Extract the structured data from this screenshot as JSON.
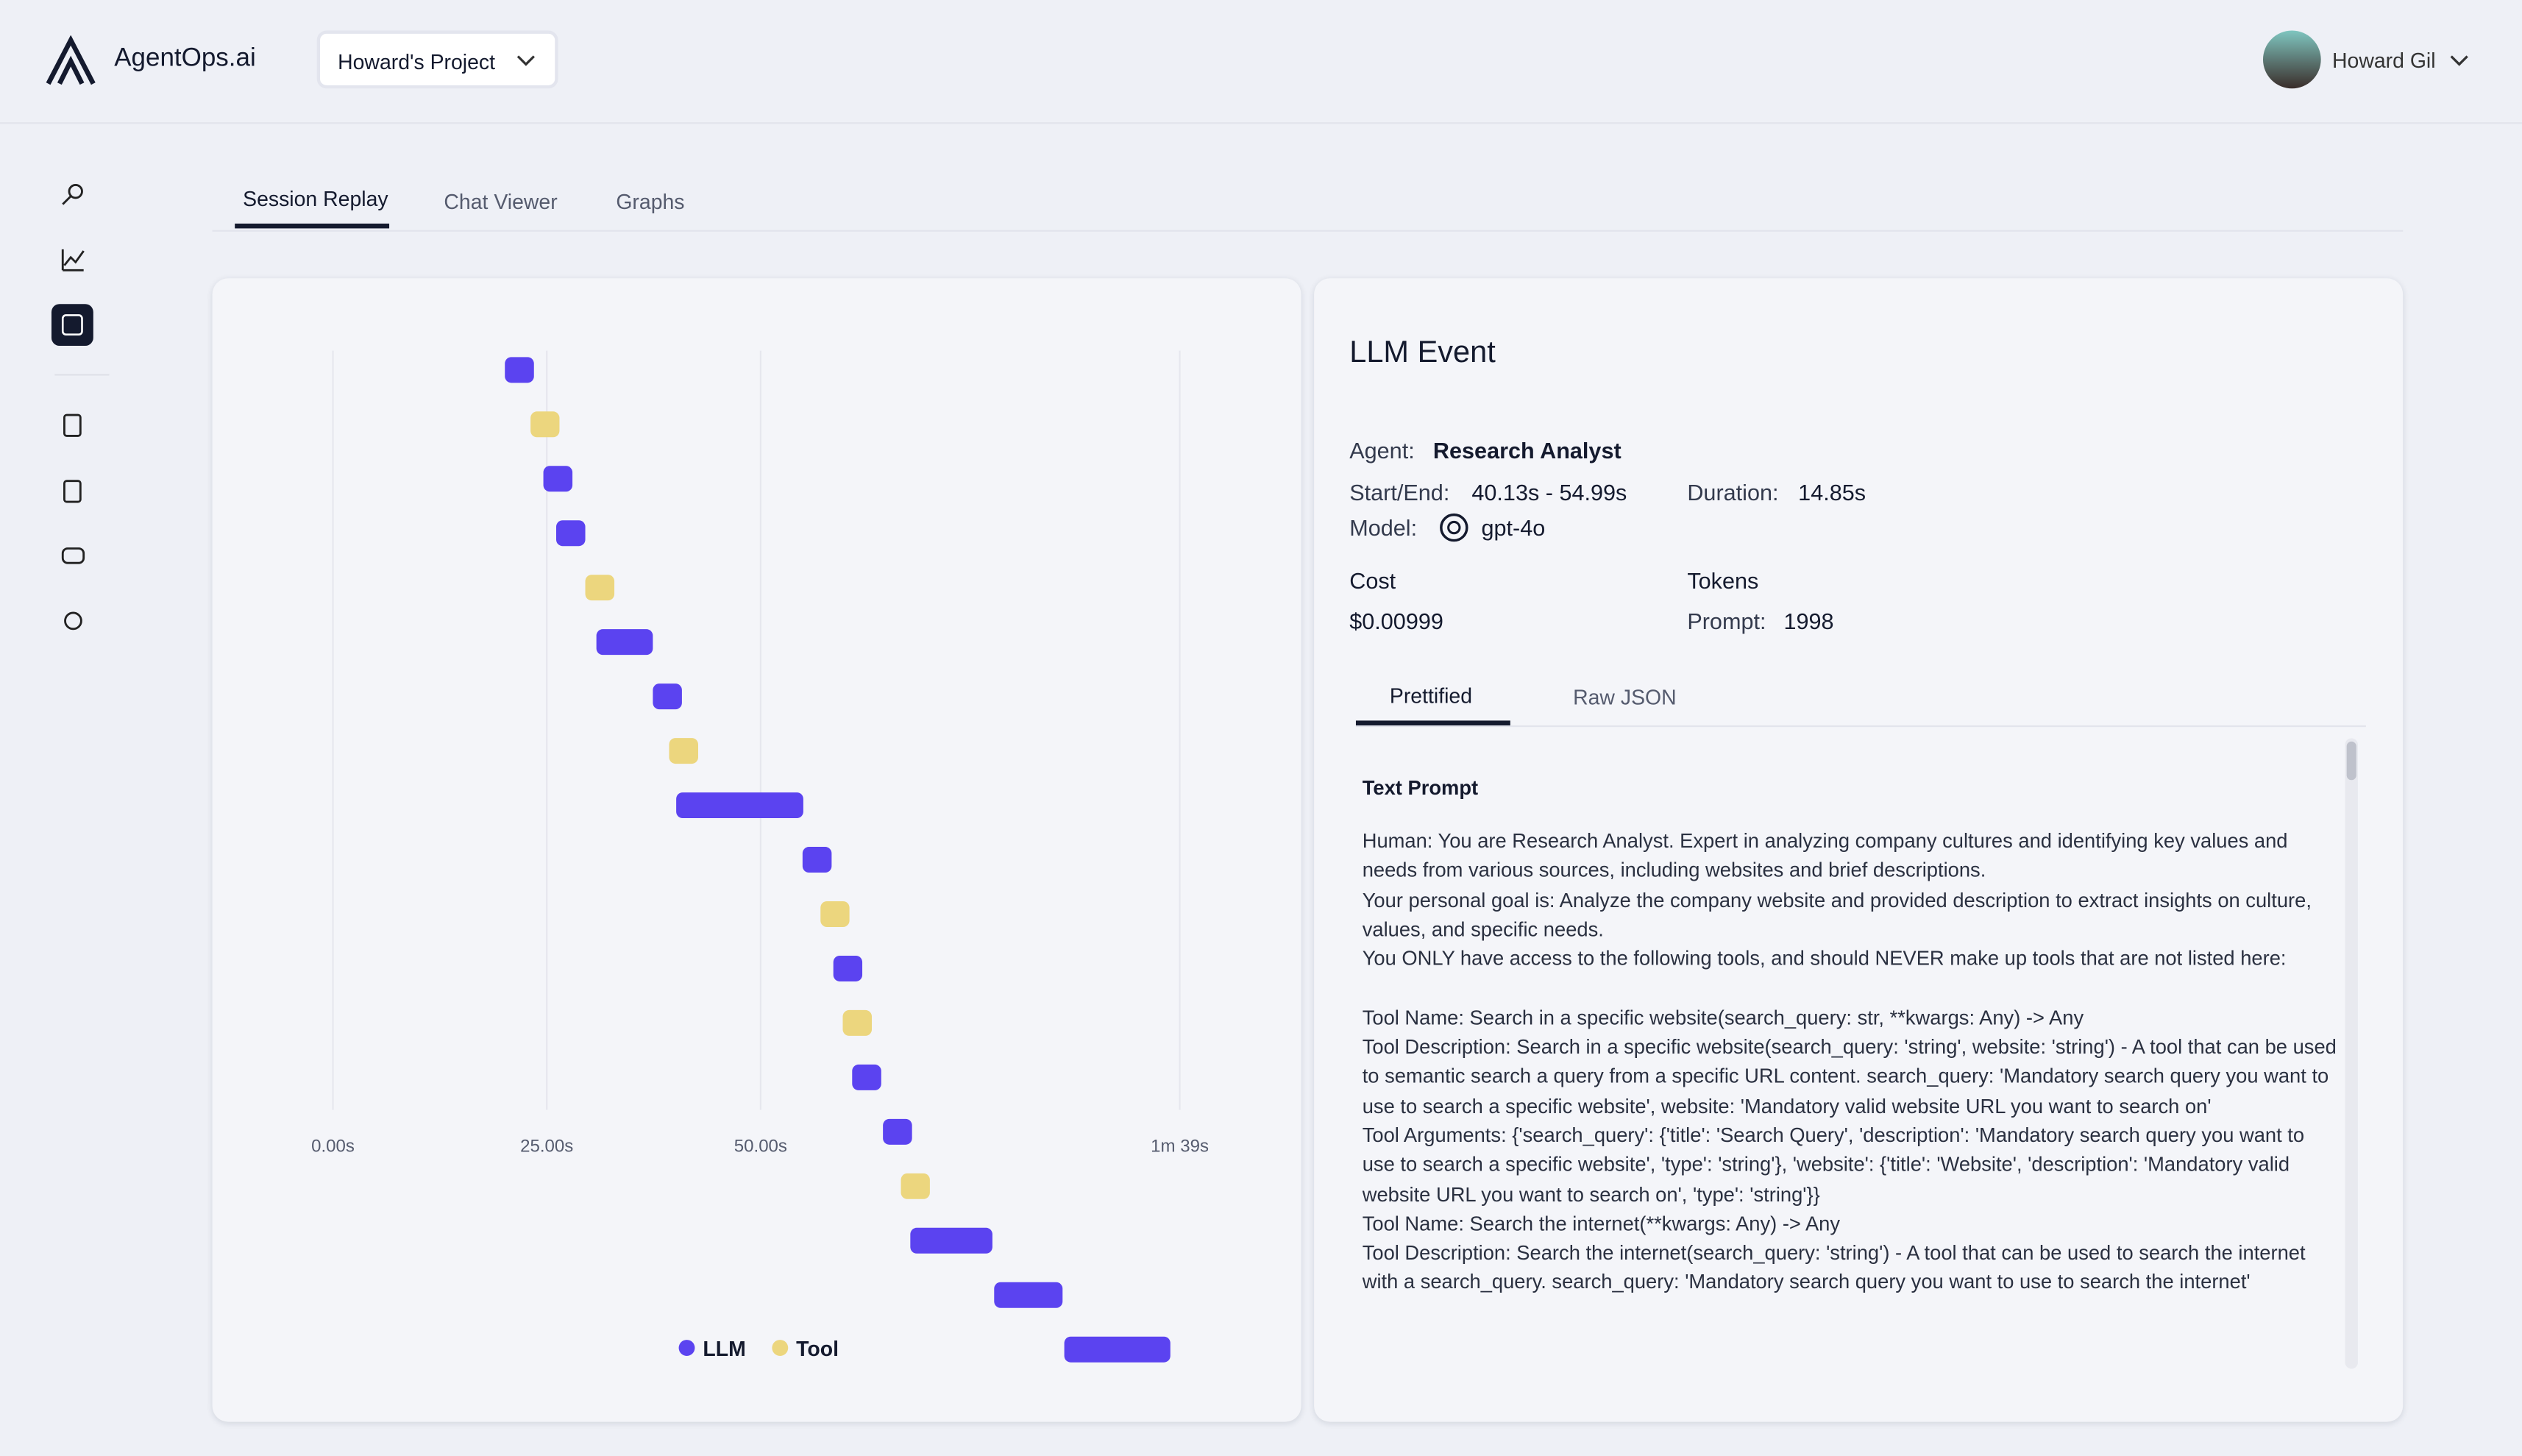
{
  "header": {
    "brand": "AgentOps.ai",
    "project": "Howard's Project",
    "user": "Howard Gil"
  },
  "tabs": [
    "Session Replay",
    "Chat Viewer",
    "Graphs"
  ],
  "chart_data": {
    "type": "timeline",
    "series": [
      {
        "name": "LLM",
        "color": "#5b43f0"
      },
      {
        "name": "Tool",
        "color": "#ecd67e"
      }
    ],
    "xlim": [
      0,
      99
    ],
    "xticks": [
      {
        "value": 0,
        "label": "0.00s"
      },
      {
        "value": 25,
        "label": "25.00s"
      },
      {
        "value": 50,
        "label": "50.00s"
      },
      {
        "value": 99,
        "label": "1m 39s"
      }
    ],
    "grid": true,
    "events": [
      {
        "series": 0,
        "start": 20.1,
        "end": 23.5
      },
      {
        "series": 1,
        "start": 23.1,
        "end": 26.3
      },
      {
        "series": 0,
        "start": 24.6,
        "end": 28.0
      },
      {
        "series": 0,
        "start": 26.1,
        "end": 29.5
      },
      {
        "series": 1,
        "start": 29.5,
        "end": 32.9
      },
      {
        "series": 0,
        "start": 30.8,
        "end": 37.4
      },
      {
        "series": 0,
        "start": 37.4,
        "end": 40.8
      },
      {
        "series": 1,
        "start": 39.3,
        "end": 42.7
      },
      {
        "series": 0,
        "start": 40.13,
        "end": 54.99
      },
      {
        "series": 0,
        "start": 54.9,
        "end": 58.3
      },
      {
        "series": 1,
        "start": 57.0,
        "end": 60.3
      },
      {
        "series": 0,
        "start": 58.5,
        "end": 61.8
      },
      {
        "series": 1,
        "start": 59.6,
        "end": 63.0
      },
      {
        "series": 0,
        "start": 60.7,
        "end": 64.1
      },
      {
        "series": 0,
        "start": 64.3,
        "end": 67.7
      },
      {
        "series": 1,
        "start": 66.4,
        "end": 69.7
      },
      {
        "series": 0,
        "start": 67.5,
        "end": 77.1
      },
      {
        "series": 0,
        "start": 77.3,
        "end": 85.3
      },
      {
        "series": 0,
        "start": 85.5,
        "end": 97.9
      }
    ]
  },
  "event": {
    "title": "LLM Event",
    "agent_label": "Agent:",
    "agent": "Research Analyst",
    "start_end_label": "Start/End:",
    "start_end": "40.13s - 54.99s",
    "duration_label": "Duration:",
    "duration": "14.85s",
    "model_label": "Model:",
    "model": "gpt-4o",
    "cost_label": "Cost",
    "cost": "$0.00999",
    "tokens_label": "Tokens",
    "prompt_label": "Prompt:",
    "prompt_tokens": "1998"
  },
  "detail_tabs": [
    "Prettified",
    "Raw JSON"
  ],
  "prompt": {
    "title": "Text Prompt",
    "blocks": [
      [
        "Human: You are Research Analyst. Expert in analyzing company cultures and identifying key values and needs from various sources, including websites and brief descriptions.",
        "Your personal goal is: Analyze the company website and provided description to extract insights on culture, values, and specific needs.",
        "You ONLY have access to the following tools, and should NEVER make up tools that are not listed here:"
      ],
      [
        "Tool Name: Search in a specific website(search_query: str, **kwargs: Any) -> Any",
        "Tool Description: Search in a specific website(search_query: 'string', website: 'string') - A tool that can be used to semantic search a query from a specific URL content. search_query: 'Mandatory search query you want to use to search a specific website', website: 'Mandatory valid website URL you want to search on'",
        "Tool Arguments: {'search_query': {'title': 'Search Query', 'description': 'Mandatory search query you want to use to search a specific website', 'type': 'string'}, 'website': {'title': 'Website', 'description': 'Mandatory valid website URL you want to search on', 'type': 'string'}}",
        "Tool Name: Search the internet(**kwargs: Any) -> Any",
        "Tool Description: Search the internet(search_query: 'string') - A tool that can be used to search the internet with a search_query. search_query: 'Mandatory search query you want to use to search the internet'"
      ]
    ]
  }
}
